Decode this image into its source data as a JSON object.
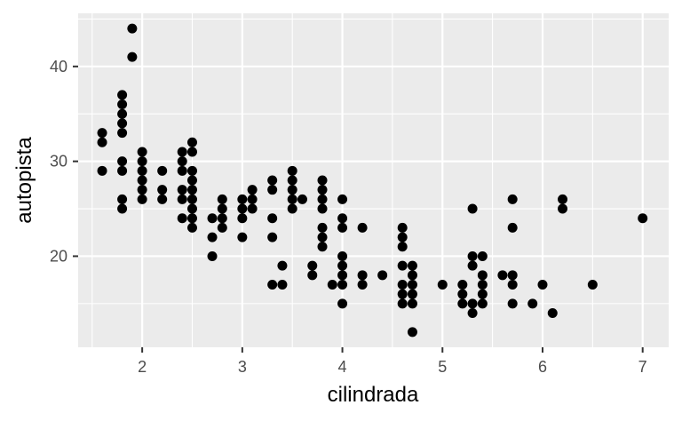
{
  "chart_data": {
    "type": "scatter",
    "xlabel": "cilindrada",
    "ylabel": "autopista",
    "xlim": [
      1.36,
      7.26
    ],
    "ylim": [
      10.4,
      45.6
    ],
    "x_ticks": [
      2,
      3,
      4,
      5,
      6,
      7
    ],
    "y_ticks": [
      20,
      30,
      40
    ],
    "grid": true,
    "colors": {
      "panel": "#ebebeb",
      "grid": "#ffffff",
      "point": "#000000",
      "tick": "#333333",
      "tick_label": "#4d4d4d"
    },
    "points": [
      [
        1.6,
        33
      ],
      [
        1.6,
        32
      ],
      [
        1.6,
        29
      ],
      [
        1.8,
        37
      ],
      [
        1.8,
        36
      ],
      [
        1.8,
        35
      ],
      [
        1.8,
        34
      ],
      [
        1.8,
        33
      ],
      [
        1.8,
        30
      ],
      [
        1.8,
        29
      ],
      [
        1.8,
        26
      ],
      [
        1.8,
        25
      ],
      [
        1.9,
        44
      ],
      [
        1.9,
        41
      ],
      [
        2.0,
        31
      ],
      [
        2.0,
        30
      ],
      [
        2.0,
        29
      ],
      [
        2.0,
        28
      ],
      [
        2.0,
        27
      ],
      [
        2.0,
        26
      ],
      [
        2.2,
        29
      ],
      [
        2.2,
        27
      ],
      [
        2.2,
        26
      ],
      [
        2.4,
        31
      ],
      [
        2.4,
        30
      ],
      [
        2.4,
        29
      ],
      [
        2.4,
        27
      ],
      [
        2.4,
        26
      ],
      [
        2.4,
        24
      ],
      [
        2.5,
        32
      ],
      [
        2.5,
        31
      ],
      [
        2.5,
        29
      ],
      [
        2.5,
        28
      ],
      [
        2.5,
        27
      ],
      [
        2.5,
        26
      ],
      [
        2.5,
        25
      ],
      [
        2.5,
        24
      ],
      [
        2.5,
        23
      ],
      [
        2.7,
        24
      ],
      [
        2.7,
        22
      ],
      [
        2.7,
        20
      ],
      [
        2.8,
        26
      ],
      [
        2.8,
        25
      ],
      [
        2.8,
        24
      ],
      [
        2.8,
        23
      ],
      [
        3.0,
        26
      ],
      [
        3.0,
        25
      ],
      [
        3.0,
        24
      ],
      [
        3.0,
        22
      ],
      [
        3.1,
        27
      ],
      [
        3.1,
        26
      ],
      [
        3.1,
        25
      ],
      [
        3.3,
        28
      ],
      [
        3.3,
        27
      ],
      [
        3.3,
        24
      ],
      [
        3.3,
        22
      ],
      [
        3.3,
        17
      ],
      [
        3.4,
        19
      ],
      [
        3.4,
        17
      ],
      [
        3.5,
        29
      ],
      [
        3.5,
        28
      ],
      [
        3.5,
        27
      ],
      [
        3.5,
        26
      ],
      [
        3.5,
        25
      ],
      [
        3.6,
        26
      ],
      [
        3.7,
        19
      ],
      [
        3.7,
        18
      ],
      [
        3.8,
        28
      ],
      [
        3.8,
        27
      ],
      [
        3.8,
        26
      ],
      [
        3.8,
        25
      ],
      [
        3.8,
        23
      ],
      [
        3.8,
        22
      ],
      [
        3.8,
        21
      ],
      [
        3.9,
        17
      ],
      [
        4.0,
        26
      ],
      [
        4.0,
        24
      ],
      [
        4.0,
        23
      ],
      [
        4.0,
        20
      ],
      [
        4.0,
        19
      ],
      [
        4.0,
        18
      ],
      [
        4.0,
        17
      ],
      [
        4.0,
        15
      ],
      [
        4.2,
        23
      ],
      [
        4.2,
        18
      ],
      [
        4.2,
        17
      ],
      [
        4.4,
        18
      ],
      [
        4.6,
        23
      ],
      [
        4.6,
        22
      ],
      [
        4.6,
        21
      ],
      [
        4.6,
        19
      ],
      [
        4.6,
        17
      ],
      [
        4.6,
        16
      ],
      [
        4.6,
        15
      ],
      [
        4.7,
        19
      ],
      [
        4.7,
        18
      ],
      [
        4.7,
        17
      ],
      [
        4.7,
        16
      ],
      [
        4.7,
        15
      ],
      [
        4.7,
        12
      ],
      [
        5.0,
        17
      ],
      [
        5.2,
        17
      ],
      [
        5.2,
        16
      ],
      [
        5.2,
        15
      ],
      [
        5.3,
        25
      ],
      [
        5.3,
        20
      ],
      [
        5.3,
        19
      ],
      [
        5.3,
        15
      ],
      [
        5.3,
        14
      ],
      [
        5.4,
        20
      ],
      [
        5.4,
        18
      ],
      [
        5.4,
        17
      ],
      [
        5.4,
        16
      ],
      [
        5.4,
        15
      ],
      [
        5.6,
        18
      ],
      [
        5.7,
        26
      ],
      [
        5.7,
        23
      ],
      [
        5.7,
        18
      ],
      [
        5.7,
        17
      ],
      [
        5.7,
        15
      ],
      [
        5.9,
        15
      ],
      [
        6.0,
        17
      ],
      [
        6.1,
        14
      ],
      [
        6.2,
        26
      ],
      [
        6.2,
        25
      ],
      [
        6.5,
        17
      ],
      [
        7.0,
        24
      ]
    ]
  }
}
